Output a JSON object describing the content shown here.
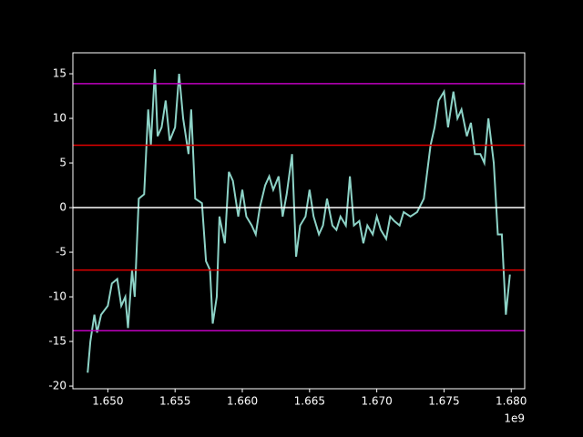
{
  "chart_data": {
    "type": "line",
    "x": [
      1.6485,
      1.6487,
      1.649,
      1.6492,
      1.6495,
      1.65,
      1.6503,
      1.6507,
      1.651,
      1.6513,
      1.6515,
      1.6518,
      1.652,
      1.6523,
      1.6527,
      1.653,
      1.6532,
      1.6535,
      1.6537,
      1.654,
      1.6543,
      1.6546,
      1.655,
      1.6553,
      1.6556,
      1.656,
      1.6562,
      1.6565,
      1.657,
      1.6573,
      1.6576,
      1.6578,
      1.6581,
      1.6583,
      1.6587,
      1.659,
      1.6593,
      1.6597,
      1.66,
      1.6603,
      1.6607,
      1.661,
      1.6613,
      1.6617,
      1.662,
      1.6623,
      1.6627,
      1.663,
      1.6633,
      1.6637,
      1.664,
      1.6643,
      1.6647,
      1.665,
      1.6653,
      1.6657,
      1.666,
      1.6663,
      1.6667,
      1.667,
      1.6673,
      1.6677,
      1.668,
      1.6683,
      1.6687,
      1.669,
      1.6693,
      1.6697,
      1.67,
      1.6703,
      1.6707,
      1.671,
      1.6713,
      1.6717,
      1.672,
      1.6725,
      1.673,
      1.6735,
      1.674,
      1.6743,
      1.6746,
      1.675,
      1.6753,
      1.6757,
      1.676,
      1.6763,
      1.6767,
      1.677,
      1.6773,
      1.6777,
      1.678,
      1.6783,
      1.6787,
      1.679,
      1.6793,
      1.6796,
      1.6799
    ],
    "series": [
      {
        "color": "#8dd3c7",
        "values": [
          -18.5,
          -15,
          -12,
          -14,
          -12,
          -11,
          -8.5,
          -8,
          -11,
          -10,
          -13.5,
          -7,
          -10,
          1,
          1.5,
          11,
          7,
          15.5,
          8,
          9,
          12,
          7.5,
          9,
          15,
          10,
          6,
          11,
          1,
          0.5,
          -6,
          -7,
          -13,
          -10,
          -1,
          -4,
          4,
          3,
          -1,
          2,
          -1,
          -2,
          -3,
          0,
          2.5,
          3.5,
          2,
          3.5,
          -1,
          1.5,
          6,
          -5.5,
          -2,
          -1,
          2,
          -1,
          -3,
          -2,
          1,
          -2,
          -2.5,
          -1,
          -2,
          3.5,
          -2,
          -1.5,
          -4,
          -2,
          -3,
          -1,
          -2.5,
          -3.5,
          -1,
          -1.5,
          -2,
          -0.5,
          -1,
          -0.5,
          1,
          7,
          9,
          12,
          13,
          9,
          13,
          10,
          11,
          8,
          9.5,
          6,
          6,
          5,
          10,
          5,
          -3,
          -3,
          -12,
          -7.5
        ]
      }
    ],
    "hlines": [
      {
        "value": 13.9,
        "color": "#bf00bf"
      },
      {
        "value": 7,
        "color": "#e00000"
      },
      {
        "value": 0,
        "color": "#ffffff"
      },
      {
        "value": -7,
        "color": "#e00000"
      },
      {
        "value": -13.8,
        "color": "#bf00bf"
      }
    ],
    "xlim": [
      1.6474,
      1.681
    ],
    "xticks": [
      {
        "value": 1.65,
        "label": "1.650"
      },
      {
        "value": 1.655,
        "label": "1.655"
      },
      {
        "value": 1.66,
        "label": "1.660"
      },
      {
        "value": 1.665,
        "label": "1.665"
      },
      {
        "value": 1.67,
        "label": "1.670"
      },
      {
        "value": 1.675,
        "label": "1.675"
      },
      {
        "value": 1.68,
        "label": "1.680"
      }
    ],
    "x_offset_label": "1e9",
    "ylim": [
      -20.3,
      17.35
    ],
    "yticks": [
      -20,
      -15,
      -10,
      -5,
      0,
      5,
      10,
      15
    ]
  }
}
